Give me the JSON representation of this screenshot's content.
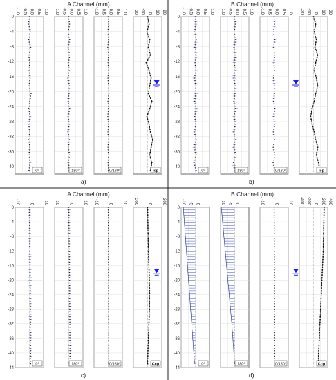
{
  "chart_data": [
    {
      "id": "a",
      "type": "line",
      "title": "A Channel (mm)",
      "subfigure_label": "a)",
      "y_ticks": [
        "0",
        "-4",
        "-8",
        "-12",
        "-16",
        "-20",
        "-24",
        "-28",
        "-32",
        "-36",
        "-40"
      ],
      "ylim": [
        -42,
        0
      ],
      "water_level": -17.5,
      "panels": [
        {
          "label": "0°",
          "xlim": [
            -1,
            1
          ],
          "x_ticks": [
            "-1.0",
            "-0.5",
            "0.0",
            "0.5",
            "1.0"
          ],
          "style": "blue-scatter",
          "series": [
            {
              "amp": 0.06,
              "seed": 3,
              "x": [
                0,
                -0.06,
                0.08,
                -0.05,
                0.09,
                -0.04,
                0.02,
                -0.03,
                0.05,
                -0.02,
                0.12,
                0.03,
                -0.04,
                0.06,
                -0.06,
                0.04,
                -0.05,
                0.03,
                -0.02,
                0.05,
                -0.03
              ]
            }
          ]
        },
        {
          "label": "180°",
          "xlim": [
            -1,
            1
          ],
          "x_ticks": [
            "-1.0",
            "-0.5",
            "0.0",
            "0.5",
            "1.0"
          ],
          "style": "blue-scatter",
          "series": [
            {
              "amp": 0.07,
              "seed": 7,
              "x": [
                0,
                0.05,
                -0.04,
                0.06,
                -0.05,
                0.07,
                -0.03,
                0.04,
                -0.06,
                0.05,
                0.02,
                -0.04,
                0.06,
                -0.05,
                0.04,
                -0.06,
                0.05,
                -0.04,
                0.06,
                -0.03,
                0.04
              ]
            }
          ]
        },
        {
          "label": "0/180°",
          "xlim": [
            -1,
            1
          ],
          "x_ticks": [
            "-1.0",
            "-0.5",
            "0.0",
            "0.5",
            "1.0"
          ],
          "style": "blue-scatter",
          "series": [
            {
              "amp": 0.03,
              "seed": 11,
              "x": [
                0,
                0.03,
                -0.02,
                0.02,
                -0.03,
                0.02,
                -0.01,
                0.02,
                -0.02,
                0.03,
                0.05,
                -0.02,
                0.02,
                -0.03,
                0.02,
                -0.02,
                0.03,
                -0.02,
                0.02,
                -0.01,
                0.02
              ]
            }
          ]
        },
        {
          "label": "Icp",
          "xlim": [
            -20,
            20
          ],
          "x_ticks": [
            "-20",
            "-10",
            "0",
            "10",
            "20"
          ],
          "style": "black-line",
          "series": [
            {
              "amp": 0,
              "seed": 1,
              "x": [
                0,
                2,
                -1,
                3,
                1,
                4,
                -2,
                2,
                5,
                3,
                1,
                6,
                3,
                -1,
                2,
                4,
                7,
                5,
                3,
                6,
                4
              ]
            }
          ]
        }
      ]
    },
    {
      "id": "b",
      "type": "line",
      "title": "B Channel (mm)",
      "subfigure_label": "b)",
      "y_ticks": [
        "0",
        "-4",
        "-8",
        "-12",
        "-16",
        "-20",
        "-24",
        "-28",
        "-32",
        "-36",
        "-40"
      ],
      "ylim": [
        -42,
        0
      ],
      "water_level": -17.5,
      "panels": [
        {
          "label": "0°",
          "xlim": [
            -1,
            1
          ],
          "x_ticks": [
            "-1.0",
            "-0.5",
            "0.0",
            "0.5",
            "1.0"
          ],
          "style": "blue-scatter",
          "series": [
            {
              "amp": 0.1,
              "seed": 5,
              "x": [
                0,
                0.04,
                -0.05,
                0.06,
                -0.03,
                0.08,
                -0.02,
                0.05,
                -0.06,
                0.04,
                0.03,
                -0.05,
                0.06,
                -0.04,
                0.05,
                -0.07,
                0.06,
                -0.08,
                0.07,
                -0.09,
                0.06
              ]
            }
          ]
        },
        {
          "label": "180°",
          "xlim": [
            -1,
            1
          ],
          "x_ticks": [
            "-1.0",
            "-0.5",
            "0.0",
            "0.5",
            "1.0"
          ],
          "style": "blue-scatter",
          "series": [
            {
              "amp": 0.1,
              "seed": 9,
              "x": [
                0,
                0.05,
                -0.04,
                0.07,
                -0.05,
                0.06,
                -0.03,
                0.05,
                -0.07,
                0.04,
                0.02,
                -0.06,
                0.07,
                -0.05,
                0.06,
                -0.08,
                0.05,
                -0.07,
                0.08,
                -0.09,
                0.07
              ]
            }
          ]
        },
        {
          "label": "0/180°",
          "xlim": [
            -1,
            1
          ],
          "x_ticks": [
            "-1.0",
            "-0.5",
            "0.0",
            "0.5",
            "1.0"
          ],
          "style": "blue-scatter",
          "series": [
            {
              "amp": 0.07,
              "seed": 13,
              "x": [
                0,
                0.03,
                -0.04,
                0.05,
                -0.03,
                0.04,
                -0.02,
                0.04,
                -0.05,
                0.03,
                0.02,
                -0.04,
                0.05,
                -0.03,
                0.04,
                -0.05,
                0.04,
                -0.06,
                0.05,
                -0.07,
                0.05
              ]
            }
          ]
        },
        {
          "label": "Icp",
          "xlim": [
            -20,
            20
          ],
          "x_ticks": [
            "-20",
            "-10",
            "0",
            "10",
            "20"
          ],
          "style": "black-line",
          "series": [
            {
              "amp": 0,
              "seed": 2,
              "x": [
                0,
                3,
                1,
                4,
                2,
                6,
                3,
                1,
                4,
                6,
                3,
                1,
                -2,
                -4,
                -2,
                1,
                3,
                6,
                4,
                7,
                9
              ]
            }
          ]
        }
      ]
    },
    {
      "id": "c",
      "type": "line",
      "title": "A Channel (mm)",
      "subfigure_label": "c)",
      "y_ticks": [
        "0",
        "-4",
        "-8",
        "-12",
        "-16",
        "-20",
        "-24",
        "-28",
        "-32",
        "-36",
        "-40",
        "-44"
      ],
      "ylim": [
        -44,
        0
      ],
      "water_level": -17.5,
      "panels": [
        {
          "label": "0°",
          "xlim": [
            -10,
            10
          ],
          "x_ticks": [
            "-10",
            "0",
            "10"
          ],
          "style": "blue-scatter",
          "series": [
            {
              "amp": 0.9,
              "seed": 4,
              "x": [
                0,
                0.1,
                0.2,
                0.2,
                0.3,
                0.3,
                0.4,
                0.4,
                0.5,
                0.5,
                0.6,
                0.6,
                0.7,
                0.7,
                0.7,
                0.8,
                0.8,
                0.8,
                0.9,
                0.9,
                0.9
              ]
            }
          ]
        },
        {
          "label": "180°",
          "xlim": [
            -10,
            10
          ],
          "x_ticks": [
            "-10",
            "0",
            "10"
          ],
          "style": "blue-scatter",
          "series": [
            {
              "amp": 0.9,
              "seed": 8,
              "x": [
                0,
                0.1,
                0.1,
                0.2,
                0.3,
                0.3,
                0.4,
                0.4,
                0.5,
                0.5,
                0.6,
                0.6,
                0.6,
                0.7,
                0.7,
                0.8,
                0.8,
                0.8,
                0.9,
                0.9,
                0.9
              ]
            }
          ]
        },
        {
          "label": "0/180°",
          "xlim": [
            -10,
            10
          ],
          "x_ticks": [
            "-10",
            "0",
            "10"
          ],
          "style": "blue-scatter",
          "series": [
            {
              "amp": 0.2,
              "seed": 12,
              "x": [
                0,
                0.05,
                0.1,
                0.1,
                0.15,
                0.15,
                0.2,
                0.2,
                0.25,
                0.25,
                0.3,
                0.3,
                0.3,
                0.35,
                0.35,
                0.4,
                0.4,
                0.4,
                0.45,
                0.45,
                0.45
              ]
            }
          ]
        },
        {
          "label": "Ccp",
          "xlim": [
            -200,
            200
          ],
          "x_ticks": [
            "-200",
            "0",
            "200"
          ],
          "style": "black-line",
          "series": [
            {
              "amp": 0,
              "seed": 1,
              "x": [
                0,
                2,
                4,
                6,
                8,
                10,
                12,
                16,
                20,
                24,
                26,
                28,
                27,
                25,
                22,
                18,
                14,
                10,
                6,
                3,
                0
              ]
            }
          ]
        }
      ]
    },
    {
      "id": "d",
      "type": "line",
      "title": "B Channel (mm)",
      "subfigure_label": "d)",
      "y_ticks": [
        "0",
        "-4",
        "-8",
        "-12",
        "-16",
        "-20",
        "-24",
        "-28",
        "-32",
        "-36",
        "-40",
        "-44"
      ],
      "ylim": [
        -44,
        0
      ],
      "water_level": -17.5,
      "panels": [
        {
          "label": "0°",
          "xlim": [
            -10,
            10
          ],
          "x_ticks": [
            "-10",
            "-5",
            "0"
          ],
          "style": "blue-lines",
          "series": [
            {
              "amp": 0,
              "seed": 6,
              "x": [
                -8.5,
                -8.1,
                -7.7,
                -7.3,
                -6.9,
                -6.5,
                -6.1,
                -5.7,
                -5.3,
                -4.9,
                -4.5,
                -4.1,
                -3.7,
                -3.3,
                -2.9,
                -2.5,
                -2.1,
                -1.7,
                -1.3,
                -0.9,
                -0.5
              ]
            }
          ]
        },
        {
          "label": "180°",
          "xlim": [
            -10,
            10
          ],
          "x_ticks": [
            "-10",
            "-5",
            "0"
          ],
          "style": "blue-lines",
          "series": [
            {
              "amp": 0,
              "seed": 10,
              "x": [
                -9.5,
                -9.0,
                -8.5,
                -8.0,
                -7.5,
                -7.0,
                -6.5,
                -6.0,
                -5.5,
                -5.0,
                -4.5,
                -4.0,
                -3.5,
                -3.0,
                -2.5,
                -2.0,
                -1.6,
                -1.2,
                -0.8,
                -0.5,
                -0.2
              ]
            }
          ]
        },
        {
          "label": "0/180°",
          "xlim": [
            -10,
            10
          ],
          "x_ticks": [
            "-10",
            "0",
            "10"
          ],
          "style": "blue-scatter",
          "series": [
            {
              "amp": 0.15,
              "seed": 14,
              "x": [
                0,
                0.05,
                0.1,
                0.1,
                0.15,
                0.15,
                0.2,
                0.2,
                0.25,
                0.25,
                0.3,
                0.3,
                0.3,
                0.35,
                0.35,
                0.4,
                0.4,
                0.4,
                0.45,
                0.45,
                0.45
              ]
            }
          ]
        },
        {
          "label": "Ccp",
          "xlim": [
            -400,
            400
          ],
          "x_ticks": [
            "-400",
            "-200",
            "0",
            "200",
            "400"
          ],
          "style": "black-line",
          "series": [
            {
              "amp": 0,
              "seed": 3,
              "x": [
                300,
                295,
                290,
                285,
                280,
                275,
                270,
                260,
                250,
                240,
                230,
                220,
                210,
                200,
                190,
                180,
                170,
                160,
                150,
                140,
                130
              ]
            }
          ]
        }
      ]
    }
  ]
}
